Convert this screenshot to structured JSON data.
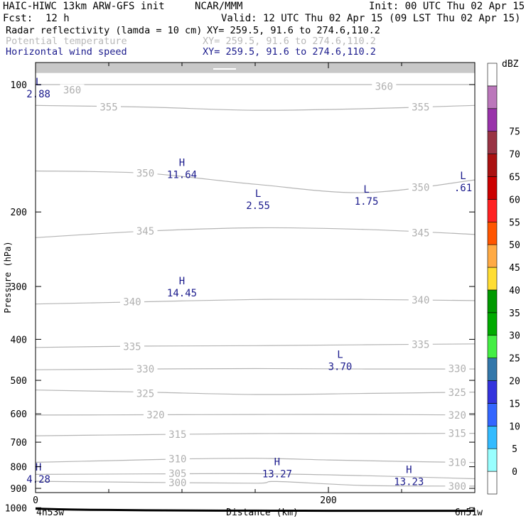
{
  "header": {
    "model": "HAIC-HIWC 13km ARW-GFS init",
    "org": "NCAR/MMM",
    "init": "Init: 00 UTC Thu 02 Apr 15",
    "fcst_label": "Fcst:",
    "fcst_value": "12 h",
    "valid": "Valid: 12 UTC Thu 02 Apr 15 (09 LST Thu 02 Apr 15)",
    "fields": [
      {
        "name": "Radar reflectivity (lamda = 10 cm)",
        "xy": "XY= 259.5, 91.6 to 274.6,110.2",
        "color": "#000000"
      },
      {
        "name": "Potential temperature",
        "xy": "XY= 259.5, 91.6 to 274.6,110.2",
        "color": "#b8b8b8"
      },
      {
        "name": "Horizontal wind speed",
        "xy": "XY= 259.5, 91.6 to 274.6,110.2",
        "color": "#1a1a8c"
      }
    ]
  },
  "chart_data": {
    "type": "line",
    "xlabel": "Distance (km)",
    "ylabel": "Pressure (hPa)",
    "xlim": [
      0,
      300
    ],
    "ylim": [
      1045,
      50
    ],
    "y_scale": "log",
    "x_ticks": [
      0,
      200
    ],
    "x_minor_ticks": [
      50,
      100,
      150,
      250,
      300
    ],
    "y_ticks": [
      100,
      200,
      300,
      400,
      500,
      600,
      700,
      800,
      900,
      1000
    ],
    "corner_labels": {
      "left": "4n53w",
      "right": "6n51w"
    },
    "theta_isentropes": [
      {
        "name": "360",
        "x": [
          0,
          75,
          150,
          225,
          300
        ],
        "p": [
          100,
          100,
          100,
          100,
          100
        ]
      },
      {
        "name": "355",
        "x": [
          0,
          75,
          150,
          225,
          300
        ],
        "p": [
          112,
          113,
          115,
          114,
          112
        ]
      },
      {
        "name": "350",
        "x": [
          0,
          75,
          150,
          225,
          300
        ],
        "p": [
          160,
          162,
          172,
          180,
          168
        ]
      },
      {
        "name": "345",
        "x": [
          0,
          75,
          150,
          225,
          300
        ],
        "p": [
          230,
          222,
          218,
          220,
          226
        ]
      },
      {
        "name": "340",
        "x": [
          0,
          75,
          150,
          225,
          300
        ],
        "p": [
          330,
          326,
          322,
          322,
          324
        ]
      },
      {
        "name": "335",
        "x": [
          0,
          75,
          150,
          225,
          300
        ],
        "p": [
          418,
          415,
          414,
          412,
          410
        ]
      },
      {
        "name": "330",
        "x": [
          0,
          75,
          150,
          225,
          300
        ],
        "p": [
          472,
          470,
          469,
          470,
          470
        ]
      },
      {
        "name": "325",
        "x": [
          0,
          75,
          150,
          225,
          300
        ],
        "p": [
          527,
          533,
          540,
          537,
          533
        ]
      },
      {
        "name": "320",
        "x": [
          0,
          75,
          150,
          225,
          300
        ],
        "p": [
          604,
          603,
          602,
          602,
          604
        ]
      },
      {
        "name": "315",
        "x": [
          0,
          75,
          150,
          225,
          300
        ],
        "p": [
          676,
          672,
          668,
          668,
          667
        ]
      },
      {
        "name": "310",
        "x": [
          0,
          50,
          100,
          150,
          200,
          250,
          300
        ],
        "p": [
          781,
          774,
          767,
          764,
          771,
          777,
          782
        ]
      },
      {
        "name": "305",
        "x": [
          0,
          75,
          150,
          225,
          300
        ],
        "p": [
          834,
          832,
          831,
          840,
          854
        ]
      },
      {
        "name": "300",
        "x": [
          0,
          75,
          150,
          165,
          225,
          300
        ],
        "p": [
          866,
          871,
          875,
          867,
          886,
          889
        ]
      }
    ],
    "theta_labels": [
      {
        "text": "360",
        "x": 25,
        "p": 103
      },
      {
        "text": "355",
        "x": 50,
        "p": 113
      },
      {
        "text": "360",
        "x": 238,
        "p": 101
      },
      {
        "text": "355",
        "x": 263,
        "p": 113
      },
      {
        "text": "350",
        "x": 75,
        "p": 162
      },
      {
        "text": "350",
        "x": 263,
        "p": 175
      },
      {
        "text": "345",
        "x": 75,
        "p": 222
      },
      {
        "text": "345",
        "x": 263,
        "p": 224
      },
      {
        "text": "340",
        "x": 66,
        "p": 326
      },
      {
        "text": "340",
        "x": 263,
        "p": 323
      },
      {
        "text": "335",
        "x": 66,
        "p": 416
      },
      {
        "text": "335",
        "x": 263,
        "p": 411
      },
      {
        "text": "330",
        "x": 75,
        "p": 470
      },
      {
        "text": "330",
        "x": 288,
        "p": 469
      },
      {
        "text": "325",
        "x": 75,
        "p": 537
      },
      {
        "text": "325",
        "x": 288,
        "p": 534
      },
      {
        "text": "320",
        "x": 82,
        "p": 603
      },
      {
        "text": "320",
        "x": 288,
        "p": 604
      },
      {
        "text": "315",
        "x": 97,
        "p": 670
      },
      {
        "text": "315",
        "x": 288,
        "p": 667
      },
      {
        "text": "310",
        "x": 97,
        "p": 767
      },
      {
        "text": "310",
        "x": 288,
        "p": 781
      },
      {
        "text": "305",
        "x": 97,
        "p": 830
      },
      {
        "text": "300",
        "x": 97,
        "p": 872
      },
      {
        "text": "300",
        "x": 288,
        "p": 889
      }
    ],
    "wind_extrema": [
      {
        "kind": "L",
        "value": "2.88",
        "x": 2,
        "p": 102
      },
      {
        "kind": "H",
        "value": "11.64",
        "x": 100,
        "p": 158
      },
      {
        "kind": "L",
        "value": "2.55",
        "x": 152,
        "p": 187
      },
      {
        "kind": "L",
        "value": "1.75",
        "x": 226,
        "p": 183
      },
      {
        "kind": "L",
        "value": ".61",
        "x": 292,
        "p": 170
      },
      {
        "kind": "H",
        "value": "14.45",
        "x": 100,
        "p": 301
      },
      {
        "kind": "L",
        "value": "3.70",
        "x": 208,
        "p": 449
      },
      {
        "kind": "H",
        "value": "4.28",
        "x": 2,
        "p": 830
      },
      {
        "kind": "H",
        "value": "13.27",
        "x": 165,
        "p": 806
      },
      {
        "kind": "H",
        "value": "13.23",
        "x": 255,
        "p": 841
      }
    ],
    "terrain": {
      "x": [
        0,
        25,
        50,
        75,
        100,
        125,
        150,
        200,
        250,
        300
      ],
      "p": [
        1005,
        1010,
        1012,
        1014,
        1015,
        1016,
        1016,
        1017,
        1017,
        1017
      ]
    },
    "colorbar": {
      "unit": "dBZ",
      "levels": [
        0,
        5,
        10,
        15,
        20,
        25,
        30,
        35,
        40,
        45,
        50,
        55,
        60,
        65,
        70,
        75
      ],
      "colors": [
        "#ffffff",
        "#99ffff",
        "#33bbff",
        "#3366ff",
        "#3333dd",
        "#3377aa",
        "#44ee44",
        "#00aa00",
        "#009900",
        "#ffdd33",
        "#ffaa44",
        "#ff5500",
        "#ff2222",
        "#cc0000",
        "#aa1111",
        "#993344",
        "#9933aa",
        "#bb77bb",
        "#ffffff"
      ]
    }
  }
}
